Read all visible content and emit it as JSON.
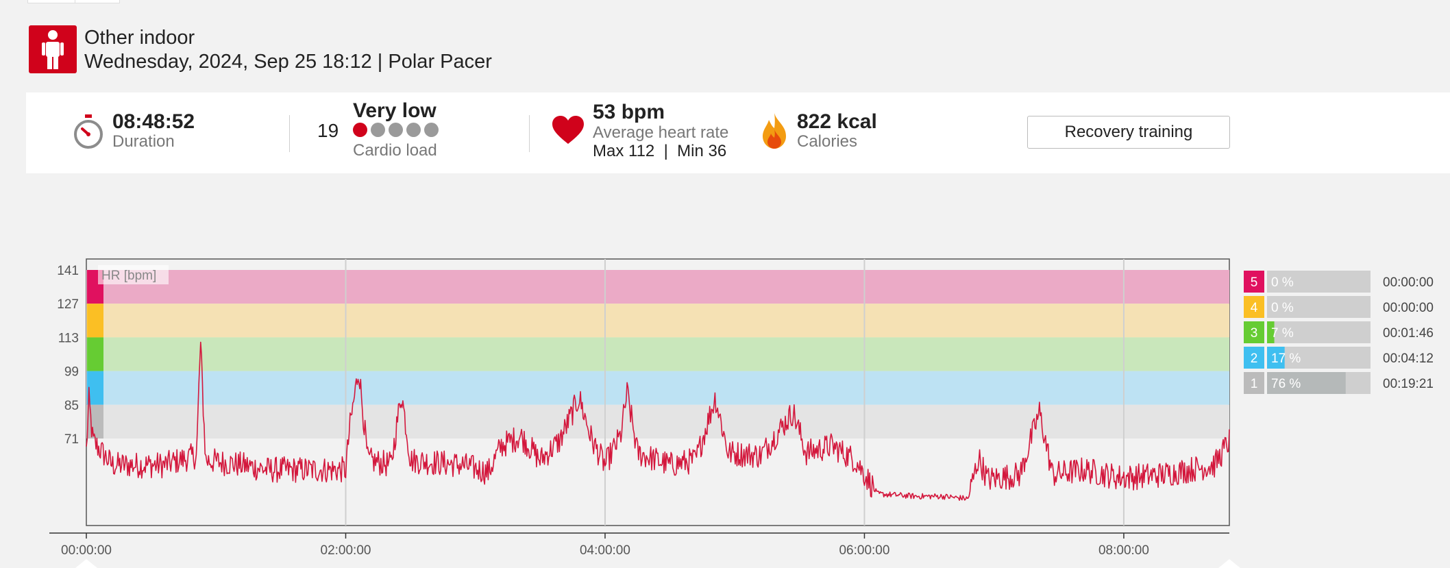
{
  "header": {
    "sport": "Other indoor",
    "subtitle": "Wednesday, 2024, Sep 25 18:12 | Polar Pacer",
    "sport_icon": "person-icon",
    "icon_color": "#d0021b"
  },
  "summary": {
    "duration_value": "08:48:52",
    "duration_label": "Duration",
    "cardio_value": "19",
    "cardio_level": "Very low",
    "cardio_label": "Cardio load",
    "cardio_dots_filled": 1,
    "cardio_dots_total": 5,
    "hr_value": "53 bpm",
    "hr_label": "Average heart rate",
    "hr_minmax": "Max 112  |  Min 36",
    "calories_value": "822 kcal",
    "calories_label": "Calories",
    "benefit_button": "Recovery training",
    "more_link": "m"
  },
  "chart_data": {
    "type": "line",
    "series_label": "HR [bpm]",
    "y_ticks": [
      141,
      127,
      113,
      99,
      85,
      71
    ],
    "ylim": [
      40,
      145
    ],
    "x_ticks": [
      "00:00:00",
      "02:00:00",
      "04:00:00",
      "06:00:00",
      "08:00:00"
    ],
    "x_tick_hours": [
      0,
      2,
      4,
      6,
      8
    ],
    "xlim_hours": [
      0,
      8.814
    ],
    "line_color": "#d3173c",
    "zones": [
      {
        "zone": "5",
        "from": 127,
        "to": 141,
        "band_color": "#ebaac6",
        "tab_color": "#e0115f",
        "percent": "0 %",
        "fraction": 0.0,
        "time": "00:00:00"
      },
      {
        "zone": "4",
        "from": 113,
        "to": 127,
        "band_color": "#f5e1b4",
        "tab_color": "#fbbf24",
        "percent": "0 %",
        "fraction": 0.0,
        "time": "00:00:00"
      },
      {
        "zone": "3",
        "from": 99,
        "to": 113,
        "band_color": "#c9e7bb",
        "tab_color": "#66cc33",
        "percent": "7 %",
        "fraction": 0.07,
        "time": "00:01:46"
      },
      {
        "zone": "2",
        "from": 85,
        "to": 99,
        "band_color": "#bde2f3",
        "tab_color": "#3fbff0",
        "percent": "17 %",
        "fraction": 0.17,
        "time": "00:04:12"
      },
      {
        "zone": "1",
        "from": 71,
        "to": 85,
        "band_color": "#e4e4e4",
        "tab_color": "#bbbbbb",
        "percent": "76 %",
        "fraction": 0.76,
        "time": "00:19:21"
      }
    ],
    "hr_key_points": [
      [
        0.0,
        66
      ],
      [
        0.02,
        87
      ],
      [
        0.05,
        70
      ],
      [
        0.2,
        60
      ],
      [
        0.6,
        60
      ],
      [
        0.85,
        64
      ],
      [
        0.88,
        111
      ],
      [
        0.92,
        62
      ],
      [
        1.2,
        60
      ],
      [
        1.4,
        58
      ],
      [
        1.7,
        58
      ],
      [
        2.0,
        58
      ],
      [
        2.03,
        75
      ],
      [
        2.1,
        100
      ],
      [
        2.17,
        62
      ],
      [
        2.35,
        60
      ],
      [
        2.43,
        90
      ],
      [
        2.5,
        62
      ],
      [
        2.9,
        60
      ],
      [
        3.1,
        57
      ],
      [
        3.2,
        68
      ],
      [
        3.35,
        72
      ],
      [
        3.5,
        62
      ],
      [
        3.65,
        70
      ],
      [
        3.8,
        88
      ],
      [
        3.9,
        70
      ],
      [
        4.0,
        60
      ],
      [
        4.12,
        72
      ],
      [
        4.17,
        90
      ],
      [
        4.25,
        65
      ],
      [
        4.5,
        60
      ],
      [
        4.7,
        62
      ],
      [
        4.85,
        88
      ],
      [
        4.95,
        65
      ],
      [
        5.2,
        64
      ],
      [
        5.45,
        82
      ],
      [
        5.55,
        65
      ],
      [
        5.75,
        68
      ],
      [
        5.93,
        62
      ],
      [
        6.1,
        48
      ],
      [
        6.4,
        47
      ],
      [
        6.6,
        47
      ],
      [
        6.8,
        46
      ],
      [
        6.88,
        63
      ],
      [
        6.95,
        54
      ],
      [
        7.2,
        56
      ],
      [
        7.35,
        82
      ],
      [
        7.45,
        56
      ],
      [
        7.7,
        58
      ],
      [
        7.95,
        55
      ],
      [
        8.05,
        55
      ],
      [
        8.3,
        56
      ],
      [
        8.5,
        58
      ],
      [
        8.7,
        60
      ],
      [
        8.814,
        70
      ]
    ]
  }
}
